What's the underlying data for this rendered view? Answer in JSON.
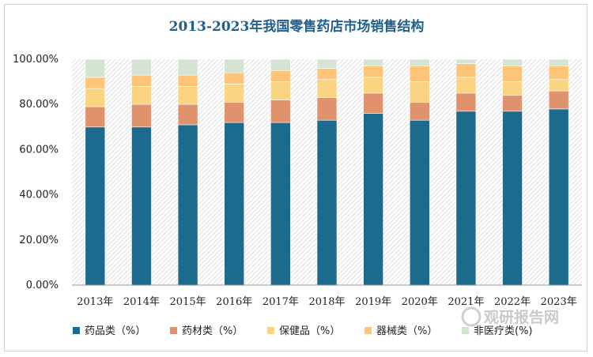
{
  "chart_data": {
    "type": "bar",
    "stacked": true,
    "title": "2013-2023年我国零售药店市场销售结构",
    "categories": [
      "2013年",
      "2014年",
      "2015年",
      "2016年",
      "2017年",
      "2018年",
      "2019年",
      "2020年",
      "2021年",
      "2022年",
      "2023年"
    ],
    "ylim": [
      0,
      100
    ],
    "yticks": [
      "0.00%",
      "20.00%",
      "40.00%",
      "60.00%",
      "80.00%",
      "100.00%"
    ],
    "ytick_values": [
      0,
      20,
      40,
      60,
      80,
      100
    ],
    "grid": false,
    "legend_position": "bottom",
    "series": [
      {
        "name": "药品类（%）",
        "color": "#1c6a8e",
        "values": [
          70,
          70,
          71,
          72,
          72,
          73,
          76,
          73,
          77,
          77,
          78
        ]
      },
      {
        "name": "药材类（%）",
        "color": "#e0926d",
        "values": [
          9,
          10,
          9,
          9,
          10,
          10,
          9,
          8,
          8,
          7,
          8
        ]
      },
      {
        "name": "保健品（%）",
        "color": "#fbd481",
        "values": [
          8,
          8,
          8,
          8,
          8,
          8,
          7,
          9,
          7,
          6,
          5
        ]
      },
      {
        "name": "器械类（%）",
        "color": "#fec478",
        "values": [
          5,
          5,
          5,
          5,
          5,
          5,
          5,
          7,
          6,
          7,
          6
        ]
      },
      {
        "name": "非医疗类(%)",
        "color": "#d4e3d2",
        "values": [
          8,
          7,
          7,
          6,
          5,
          4,
          3,
          3,
          2,
          3,
          3
        ]
      }
    ]
  },
  "watermark": {
    "text": "观研报告网"
  }
}
